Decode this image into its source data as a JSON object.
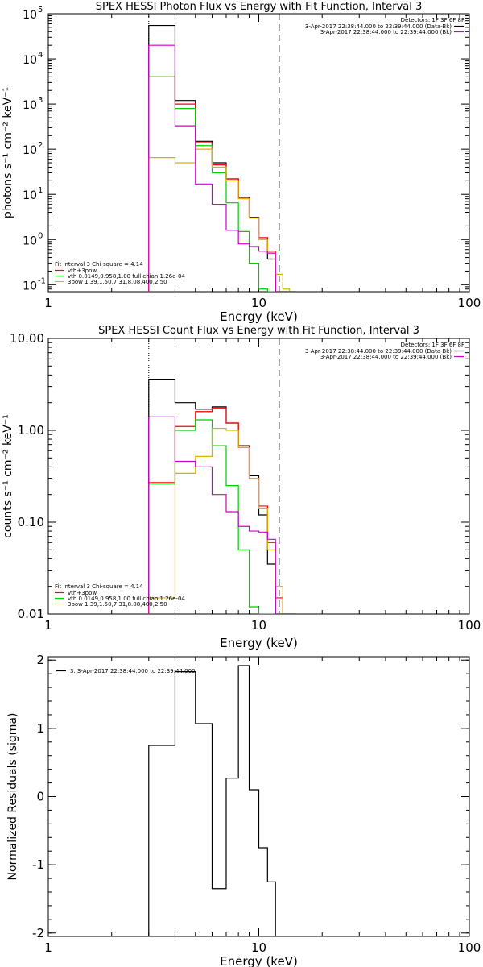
{
  "chart_data": [
    {
      "type": "line",
      "title": "SPEX HESSI Photon Flux vs Energy with Fit Function, Interval 3",
      "xlabel": "Energy (keV)",
      "ylabel": "photons s⁻¹ cm⁻² keV⁻¹",
      "xscale": "log",
      "yscale": "log",
      "xlim": [
        1,
        100
      ],
      "ylim": [
        0.07,
        100000
      ],
      "x_ticks": [
        {
          "value": 1,
          "label": "1"
        },
        {
          "value": 10,
          "label": "10"
        },
        {
          "value": 100,
          "label": "100"
        }
      ],
      "y_ticks": [
        {
          "value": 0.1,
          "base": "10",
          "exp": "-1"
        },
        {
          "value": 1,
          "base": "10",
          "exp": "0"
        },
        {
          "value": 10,
          "base": "10",
          "exp": "1"
        },
        {
          "value": 100,
          "base": "10",
          "exp": "2"
        },
        {
          "value": 1000,
          "base": "10",
          "exp": "3"
        },
        {
          "value": 10000,
          "base": "10",
          "exp": "4"
        },
        {
          "value": 100000,
          "base": "10",
          "exp": "5"
        }
      ],
      "vlines": [
        {
          "x": 3,
          "style": "dotted",
          "color": "#000000"
        },
        {
          "x": 12.5,
          "style": "dashed",
          "color": "#000000"
        }
      ],
      "bin_edges": [
        3,
        4,
        5,
        6,
        7,
        8,
        9,
        10,
        11,
        12,
        13,
        14,
        15
      ],
      "series": [
        {
          "name": "Data",
          "color": "#000000",
          "values": [
            55000,
            1200,
            150,
            50,
            22,
            8.7,
            3.1,
            1.1,
            0.37,
            0.05,
            0.05,
            0.05
          ]
        },
        {
          "name": "vth+3pow",
          "color": "#ff0000",
          "values": [
            4000,
            1000,
            140,
            45,
            22,
            8.2,
            3.0,
            1.1,
            0.55,
            0.07,
            0.05,
            0.05
          ]
        },
        {
          "name": "vth 0.0149,0.958,1.00 full chian 1.26e-04",
          "color": "#00cc00",
          "values": [
            4000,
            800,
            120,
            30,
            6.5,
            1.5,
            0.3,
            0.08,
            0.05,
            0.05,
            0.05,
            0.05
          ]
        },
        {
          "name": "3pow 1.39,1.50,7.31,8.08,400,2.50",
          "color": "#ddb000",
          "values": [
            65,
            50,
            100,
            40,
            20,
            8,
            3,
            1,
            0.5,
            0.17,
            0.08,
            0.05
          ]
        },
        {
          "name": "Bkg",
          "color": "#cc00cc",
          "values": [
            20000,
            330,
            17,
            6,
            1.6,
            0.8,
            0.7,
            0.55,
            0.5,
            0.05,
            0.05,
            0.05
          ]
        }
      ],
      "legend_top": {
        "placement": "top-right",
        "heading": "Detectors: 1F 3F 6F 8F",
        "entries": [
          {
            "text": "3-Apr-2017 22:38:44.000 to 22:39:44.000 (Data-Bk)",
            "color": "#000000"
          },
          {
            "text": "3-Apr-2017 22:38:44.000 to 22:39:44.000 (Bk)",
            "color": "#cc00cc"
          }
        ]
      },
      "legend_bottom": {
        "placement": "bottom-left",
        "heading": "Fit Interval 3   Chi-square = 4.14",
        "entries": [
          {
            "text": "vth+3pow",
            "color": "#ff0000"
          },
          {
            "text": "vth 0.0149,0.958,1.00  full chian 1.26e-04",
            "color": "#00cc00"
          },
          {
            "text": "3pow 1.39,1.50,7.31,8.08,400,2.50",
            "color": "#ddb000"
          }
        ]
      }
    },
    {
      "type": "line",
      "title": "SPEX HESSI Count Flux vs Energy with Fit Function, Interval 3",
      "xlabel": "Energy (keV)",
      "ylabel": "counts s⁻¹ cm⁻² keV⁻¹",
      "xscale": "log",
      "yscale": "log",
      "xlim": [
        1,
        100
      ],
      "ylim": [
        0.01,
        10
      ],
      "x_ticks": [
        {
          "value": 1,
          "label": "1"
        },
        {
          "value": 10,
          "label": "10"
        },
        {
          "value": 100,
          "label": "100"
        }
      ],
      "y_ticks": [
        {
          "value": 0.01,
          "label": "0.01"
        },
        {
          "value": 0.1,
          "label": "0.10"
        },
        {
          "value": 1,
          "label": "1.00"
        },
        {
          "value": 10,
          "label": "10.00"
        }
      ],
      "vlines": [
        {
          "x": 3,
          "style": "dotted",
          "color": "#000000"
        },
        {
          "x": 12.5,
          "style": "dashed",
          "color": "#000000"
        }
      ],
      "bin_edges": [
        3,
        4,
        5,
        6,
        7,
        8,
        9,
        10,
        11,
        12,
        13,
        14,
        15
      ],
      "series": [
        {
          "name": "Data",
          "color": "#000000",
          "values": [
            3.6,
            2.0,
            1.7,
            1.8,
            1.2,
            0.68,
            0.32,
            0.12,
            0.035,
            0.01,
            0.01,
            0.01
          ]
        },
        {
          "name": "vth+3pow",
          "color": "#ff0000",
          "values": [
            0.27,
            1.1,
            1.6,
            1.75,
            1.2,
            0.65,
            0.3,
            0.15,
            0.06,
            0.015,
            0.01,
            0.01
          ]
        },
        {
          "name": "vth 0.0149,0.958,1.00 full chian 1.26e-04",
          "color": "#00cc00",
          "values": [
            0.26,
            1.0,
            1.3,
            0.68,
            0.25,
            0.05,
            0.012,
            0.01,
            0.01,
            0.01,
            0.01,
            0.01
          ]
        },
        {
          "name": "3pow 1.39,1.50,7.31,8.08,400,2.50",
          "color": "#ddb000",
          "values": [
            0.015,
            0.34,
            0.52,
            1.05,
            1.0,
            0.65,
            0.3,
            0.14,
            0.05,
            0.02,
            0.01,
            0.01
          ]
        },
        {
          "name": "Bkg",
          "color": "#cc00cc",
          "values": [
            1.4,
            0.46,
            0.4,
            0.2,
            0.13,
            0.09,
            0.08,
            0.078,
            0.065,
            0.01,
            0.01,
            0.01
          ]
        }
      ],
      "legend_top": {
        "placement": "top-right",
        "heading": "Detectors: 1F 3F 6F 8F",
        "entries": [
          {
            "text": "3-Apr-2017 22:38:44.000 to 22:39:44.000 (Data-Bk)",
            "color": "#000000"
          },
          {
            "text": "3-Apr-2017 22:38:44.000 to 22:39:44.000 (Bk)",
            "color": "#cc00cc"
          }
        ]
      },
      "legend_bottom": {
        "placement": "bottom-left",
        "heading": "Fit Interval 3   Chi-square = 4.14",
        "entries": [
          {
            "text": "vth+3pow",
            "color": "#ff0000"
          },
          {
            "text": "vth 0.0149,0.958,1.00  full chian 1.26e-04",
            "color": "#00cc00"
          },
          {
            "text": "3pow 1.39,1.50,7.31,8.08,400,2.50",
            "color": "#ddb000"
          }
        ]
      }
    },
    {
      "type": "line",
      "title": "",
      "xlabel": "Energy (keV)",
      "ylabel": "Normalized Residuals (sigma)",
      "xscale": "log",
      "yscale": "linear",
      "xlim": [
        1,
        100
      ],
      "ylim": [
        -2.05,
        2.05
      ],
      "x_ticks": [
        {
          "value": 1,
          "label": "1"
        },
        {
          "value": 10,
          "label": "10"
        },
        {
          "value": 100,
          "label": "100"
        }
      ],
      "y_ticks": [
        {
          "value": -2,
          "label": "-2"
        },
        {
          "value": -1,
          "label": "-1"
        },
        {
          "value": 0,
          "label": "0"
        },
        {
          "value": 1,
          "label": "1"
        },
        {
          "value": 2,
          "label": "2"
        }
      ],
      "vlines": [],
      "bin_edges": [
        3,
        4,
        5,
        6,
        7,
        8,
        9,
        10,
        11,
        12
      ],
      "series": [
        {
          "name": "3.  3-Apr-2017 22:38:44.000 to 22:39:44.000",
          "color": "#000000",
          "values": [
            0.75,
            1.83,
            1.07,
            -1.35,
            0.27,
            1.92,
            0.1,
            -0.75,
            -1.25
          ]
        }
      ],
      "legend_top": {
        "placement": "top-left",
        "heading": "",
        "entries": [
          {
            "text": "3.  3-Apr-2017 22:38:44.000 to 22:39:44.000",
            "color": "#000000"
          }
        ]
      },
      "legend_bottom": null
    }
  ]
}
